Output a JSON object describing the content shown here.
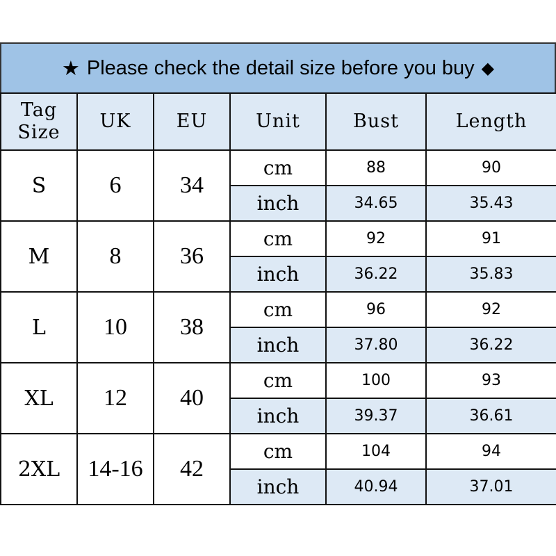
{
  "title": {
    "star_icon": "★",
    "text": "Please check the detail size before you buy",
    "diamond_icon": "◆"
  },
  "headers": {
    "tag_size_line1": "Tag",
    "tag_size_line2": "Size",
    "uk": "UK",
    "eu": "EU",
    "unit": "Unit",
    "bust": "Bust",
    "length": "Length"
  },
  "rows": [
    {
      "tag": "S",
      "uk": "6",
      "eu": "34",
      "cm": {
        "unit": "cm",
        "bust": "88",
        "length": "90"
      },
      "inch": {
        "unit": "inch",
        "bust": "34.65",
        "length": "35.43"
      }
    },
    {
      "tag": "M",
      "uk": "8",
      "eu": "36",
      "cm": {
        "unit": "cm",
        "bust": "92",
        "length": "91"
      },
      "inch": {
        "unit": "inch",
        "bust": "36.22",
        "length": "35.83"
      }
    },
    {
      "tag": "L",
      "uk": "10",
      "eu": "38",
      "cm": {
        "unit": "cm",
        "bust": "96",
        "length": "92"
      },
      "inch": {
        "unit": "inch",
        "bust": "37.80",
        "length": "36.22"
      }
    },
    {
      "tag": "XL",
      "uk": "12",
      "eu": "40",
      "cm": {
        "unit": "cm",
        "bust": "100",
        "length": "93"
      },
      "inch": {
        "unit": "inch",
        "bust": "39.37",
        "length": "36.61"
      }
    },
    {
      "tag": "2XL",
      "uk": "14-16",
      "eu": "42",
      "cm": {
        "unit": "cm",
        "bust": "104",
        "length": "94"
      },
      "inch": {
        "unit": "inch",
        "bust": "40.94",
        "length": "37.01"
      }
    }
  ]
}
